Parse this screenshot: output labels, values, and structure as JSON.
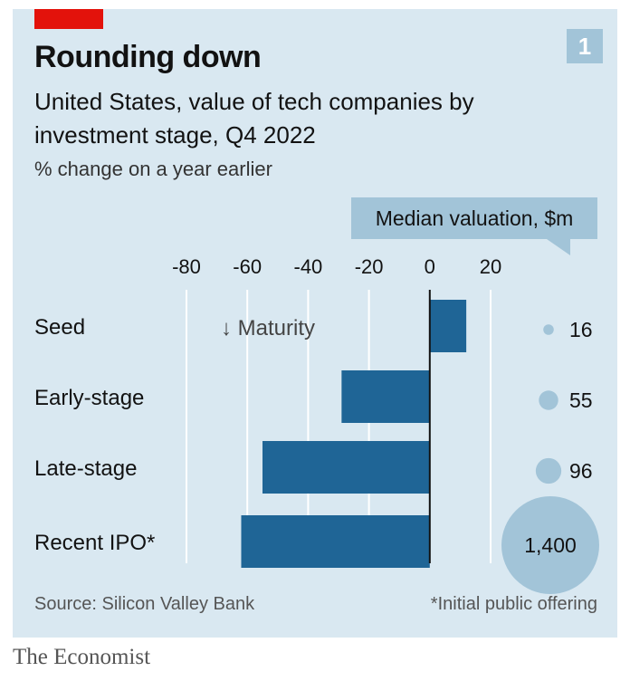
{
  "header": {
    "page_number": "1",
    "title": "Rounding down",
    "subtitle": "United States, value of tech companies by investment stage, Q4 2022",
    "units": "% change on a year earlier"
  },
  "legend": {
    "title": "Median valuation, $m"
  },
  "annotation": {
    "maturity": "↓ Maturity"
  },
  "footer": {
    "source": "Source: Silicon Valley Bank",
    "footnote": "*Initial public offering",
    "publisher": "The Economist"
  },
  "colors": {
    "background": "#d9e8f1",
    "bar": "#1f6596",
    "bubble": "#a2c4d8",
    "accent": "#e3120b"
  },
  "chart_data": {
    "type": "bar",
    "orientation": "horizontal",
    "categories": [
      "Seed",
      "Early-stage",
      "Late-stage",
      "Recent IPO*"
    ],
    "values": [
      12,
      -29,
      -55,
      -62
    ],
    "xlim": [
      -80,
      20
    ],
    "xticks": [
      -80,
      -60,
      -40,
      -20,
      0,
      20
    ],
    "tick_labels": [
      "-80",
      "-60",
      "-40",
      "-20",
      "0",
      "20"
    ],
    "grid": true,
    "median_valuation": [
      {
        "category": "Seed",
        "value": 16,
        "label": "16"
      },
      {
        "category": "Early-stage",
        "value": 55,
        "label": "55"
      },
      {
        "category": "Late-stage",
        "value": 96,
        "label": "96"
      },
      {
        "category": "Recent IPO*",
        "value": 1400,
        "label": "1,400"
      }
    ]
  }
}
